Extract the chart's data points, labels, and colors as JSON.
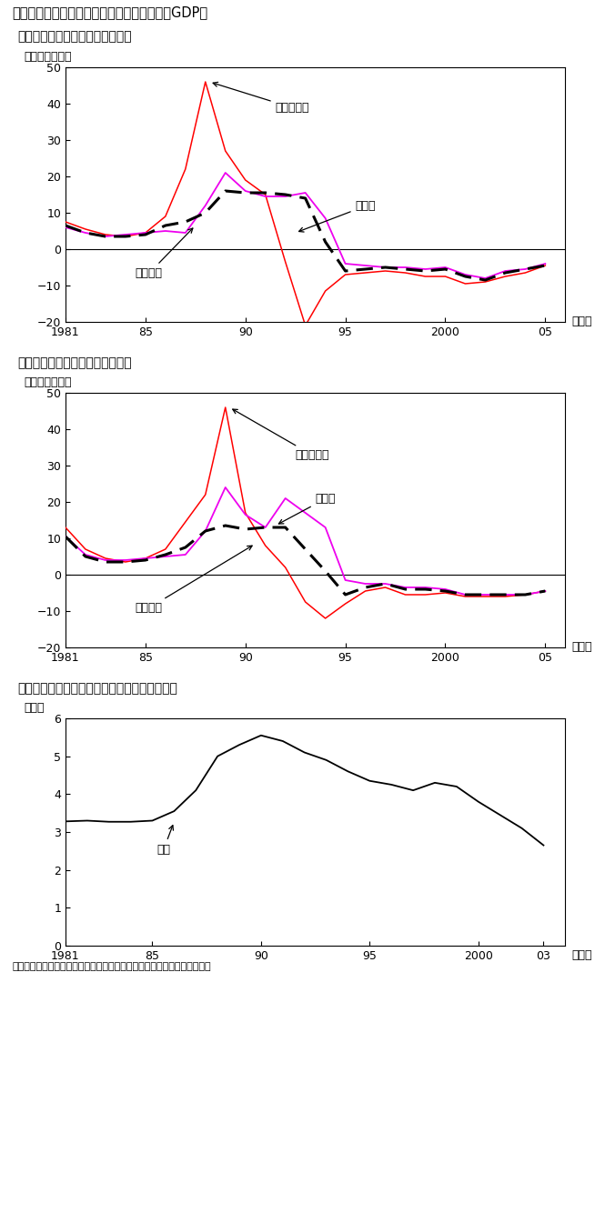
{
  "title": "第１－３－６図　公示地価、土地資産額名目GDP比",
  "panel1_title": "（１）商業地地価の下落率が縮小",
  "panel2_title": "（２）住宅地地価の下落率も縮小",
  "panel3_title": "（３）土地資産額の対名目ＧＤＰ比は低下傾向",
  "ylabel1": "（前年比、％）",
  "ylabel3": "（倍）",
  "footer": "（備考）国土交通省「地価公示」、内閣府「国民経済計算」により作成。",
  "nendo": "（年）",
  "years1": [
    1981,
    1982,
    1983,
    1984,
    1985,
    1986,
    1987,
    1988,
    1989,
    1990,
    1991,
    1992,
    1993,
    1994,
    1995,
    1996,
    1997,
    1998,
    1999,
    2000,
    2001,
    2002,
    2003,
    2004,
    2005
  ],
  "commercial_metro": [
    7.5,
    5.5,
    4.0,
    3.5,
    4.5,
    9.0,
    22.0,
    46.0,
    27.0,
    19.0,
    15.0,
    -3.5,
    -21.0,
    -11.5,
    -7.0,
    -6.5,
    -6.0,
    -6.5,
    -7.5,
    -7.5,
    -9.5,
    -9.0,
    -7.5,
    -6.5,
    -4.5
  ],
  "commercial_regional": [
    6.0,
    4.5,
    3.5,
    4.0,
    4.5,
    5.0,
    4.5,
    12.0,
    21.0,
    16.0,
    14.5,
    14.5,
    15.5,
    8.5,
    -4.0,
    -4.5,
    -5.0,
    -5.0,
    -5.5,
    -5.0,
    -7.0,
    -8.0,
    -6.0,
    -5.5,
    -4.0
  ],
  "commercial_national": [
    6.5,
    4.5,
    3.5,
    3.5,
    4.0,
    6.5,
    7.5,
    10.0,
    16.0,
    15.5,
    15.5,
    15.0,
    14.0,
    2.0,
    -6.0,
    -5.5,
    -5.0,
    -5.5,
    -6.0,
    -5.5,
    -7.5,
    -8.5,
    -6.5,
    -5.5,
    -4.5
  ],
  "years2": [
    1981,
    1982,
    1983,
    1984,
    1985,
    1986,
    1987,
    1988,
    1989,
    1990,
    1991,
    1992,
    1993,
    1994,
    1995,
    1996,
    1997,
    1998,
    1999,
    2000,
    2001,
    2002,
    2003,
    2004,
    2005
  ],
  "residential_metro": [
    13.0,
    7.0,
    4.5,
    3.5,
    4.5,
    7.0,
    14.5,
    22.0,
    46.0,
    17.0,
    8.0,
    2.0,
    -7.5,
    -12.0,
    -8.0,
    -4.5,
    -3.5,
    -5.5,
    -5.5,
    -5.0,
    -6.0,
    -6.0,
    -6.0,
    -5.5,
    -4.5
  ],
  "residential_regional": [
    10.5,
    5.5,
    4.0,
    4.0,
    4.5,
    5.0,
    5.5,
    12.0,
    24.0,
    16.5,
    13.0,
    21.0,
    17.0,
    13.0,
    -1.5,
    -2.5,
    -2.5,
    -3.5,
    -3.5,
    -4.0,
    -5.5,
    -5.5,
    -5.5,
    -5.5,
    -4.5
  ],
  "residential_national": [
    10.5,
    5.0,
    3.5,
    3.5,
    4.0,
    5.5,
    7.5,
    12.0,
    13.5,
    12.5,
    13.0,
    13.0,
    7.0,
    1.0,
    -5.5,
    -3.5,
    -2.5,
    -4.0,
    -4.0,
    -4.5,
    -5.5,
    -5.5,
    -5.5,
    -5.5,
    -4.5
  ],
  "years3": [
    1981,
    1982,
    1983,
    1984,
    1985,
    1986,
    1987,
    1988,
    1989,
    1990,
    1991,
    1992,
    1993,
    1994,
    1995,
    1996,
    1997,
    1998,
    1999,
    2000,
    2001,
    2002,
    2003
  ],
  "land_gdp": [
    3.28,
    3.3,
    3.27,
    3.27,
    3.3,
    3.55,
    4.1,
    5.0,
    5.3,
    5.55,
    5.4,
    5.1,
    4.9,
    4.6,
    4.35,
    4.25,
    4.1,
    4.3,
    4.2,
    3.8,
    3.45,
    3.1,
    2.65
  ],
  "color_red": "#ff0000",
  "color_magenta": "#ee00ee",
  "color_black": "#000000",
  "bg_color": "#ffffff"
}
